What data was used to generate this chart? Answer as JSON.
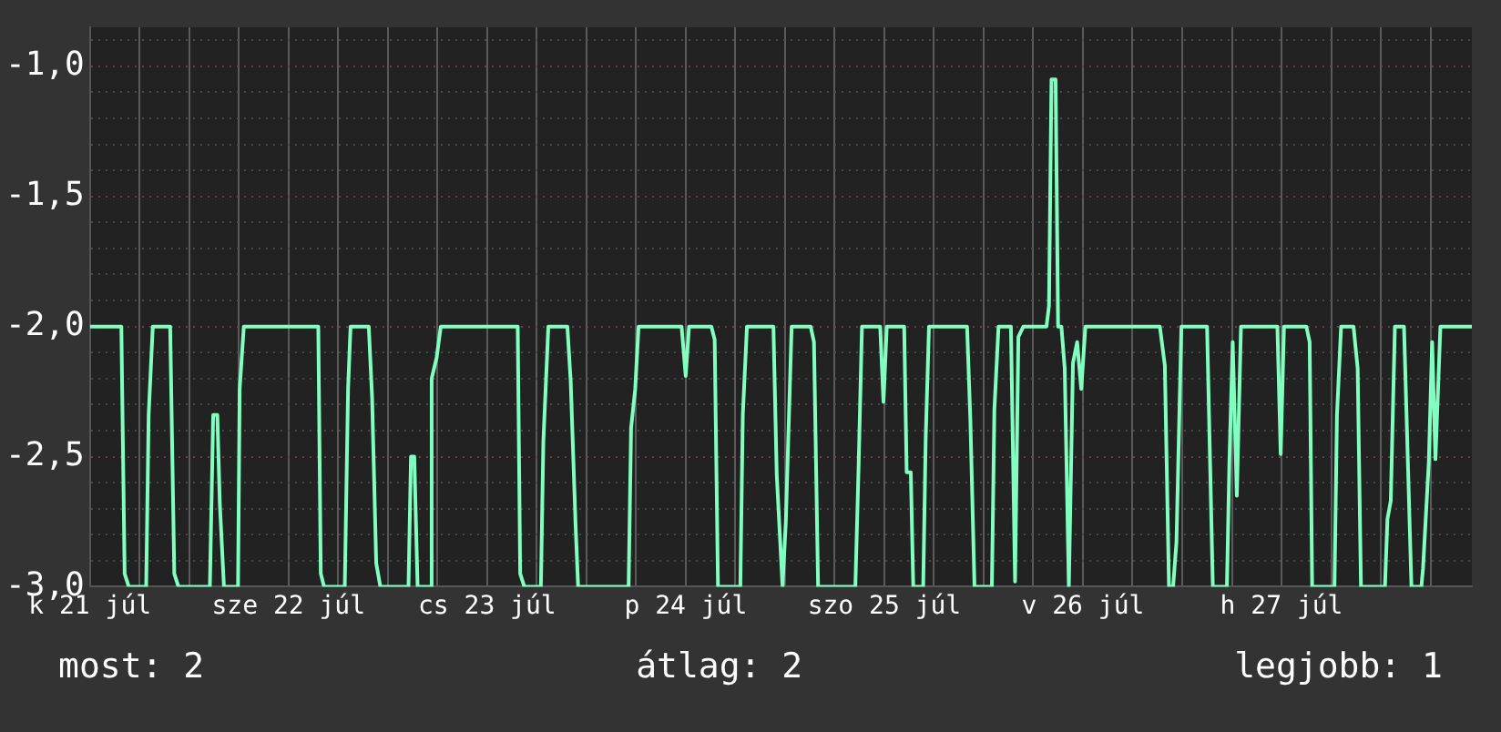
{
  "chart_data": {
    "type": "line",
    "color": "#80ffc0",
    "x": [
      "--07-21T12:00",
      "--07-21T15:48",
      "--07-21T16:12",
      "--07-21T16:42",
      "--07-21T18:48",
      "--07-21T19:06",
      "--07-21T19:36",
      "--07-21T21:42",
      "--07-21T22:12",
      "--07-21T22:42",
      "--07-22T02:30",
      "--07-22T02:54",
      "--07-22T03:24",
      "--07-22T03:42",
      "--07-22T04:12",
      "--07-22T05:54",
      "--07-22T06:06",
      "--07-22T06:36",
      "--07-22T15:36",
      "--07-22T15:54",
      "--07-22T16:18",
      "--07-22T18:48",
      "--07-22T19:12",
      "--07-22T19:30",
      "--07-22T21:42",
      "--07-22T22:06",
      "--07-22T22:36",
      "--07-22T23:06",
      "--07-23T02:30",
      "--07-23T02:48",
      "--07-23T03:12",
      "--07-23T03:36",
      "--07-23T05:06",
      "--07-23T05:18",
      "--07-23T05:54",
      "--07-23T06:24",
      "--07-23T15:42",
      "--07-23T16:00",
      "--07-23T16:30",
      "--07-23T18:30",
      "--07-23T18:48",
      "--07-23T19:24",
      "--07-23T21:42",
      "--07-23T22:06",
      "--07-23T22:42",
      "--07-23T23:00",
      "--07-24T05:06",
      "--07-24T05:24",
      "--07-24T05:54",
      "--07-24T06:18",
      "--07-24T11:30",
      "--07-24T12:00",
      "--07-24T12:24",
      "--07-24T15:06",
      "--07-24T15:30",
      "--07-24T15:54",
      "--07-24T18:36",
      "--07-24T18:54",
      "--07-24T19:24",
      "--07-24T22:36",
      "--07-24T23:00",
      "--07-24T23:42",
      "--07-25T00:06",
      "--07-25T00:48",
      "--07-25T03:06",
      "--07-25T03:30",
      "--07-25T04:00",
      "--07-25T08:30",
      "--07-25T08:54",
      "--07-25T09:18",
      "--07-25T11:30",
      "--07-25T11:54",
      "--07-25T12:18",
      "--07-25T14:24",
      "--07-25T14:42",
      "--07-25T15:12",
      "--07-25T15:30",
      "--07-25T16:42",
      "--07-25T17:00",
      "--07-25T17:24",
      "--07-25T22:00",
      "--07-25T22:24",
      "--07-25T22:54",
      "--07-26T01:00",
      "--07-26T01:18",
      "--07-26T01:48",
      "--07-26T03:18",
      "--07-26T03:48",
      "--07-26T04:12",
      "--07-26T04:48",
      "--07-26T07:36",
      "--07-26T07:54",
      "--07-26T08:12",
      "--07-26T08:42",
      "--07-26T09:00",
      "--07-26T09:24",
      "--07-26T09:48",
      "--07-26T10:18",
      "--07-26T10:48",
      "--07-26T11:18",
      "--07-26T11:48",
      "--07-26T12:18",
      "--07-26T21:18",
      "--07-26T21:54",
      "--07-26T22:24",
      "--07-26T22:54",
      "--07-26T23:18",
      "--07-26T23:54",
      "--07-27T03:00",
      "--07-27T03:24",
      "--07-27T03:42",
      "--07-27T05:24",
      "--07-27T05:42",
      "--07-27T06:06",
      "--07-27T06:36",
      "--07-27T07:06",
      "--07-27T11:30",
      "--07-27T11:54",
      "--07-27T12:18",
      "--07-27T15:00",
      "--07-27T15:24",
      "--07-27T15:42",
      "--07-27T18:24",
      "--07-27T18:42",
      "--07-27T19:12",
      "--07-27T20:42",
      "--07-27T21:12",
      "--07-27T21:36",
      "--07-28T00:30",
      "--07-28T00:48",
      "--07-28T01:12",
      "--07-28T01:42",
      "--07-28T02:48",
      "--07-28T03:42",
      "--07-28T04:54",
      "--07-28T05:06",
      "--07-28T05:48",
      "--07-28T06:12",
      "--07-28T06:36",
      "--07-28T07:12",
      "--07-28T11:00"
    ],
    "values": [
      -2,
      -2,
      -2.95,
      -3,
      -3,
      -2.34,
      -2,
      -2,
      -2.95,
      -3,
      -3,
      -2.34,
      -2.34,
      -2.68,
      -3,
      -3,
      -2.24,
      -2,
      -2,
      -2.95,
      -3,
      -3,
      -2.24,
      -2,
      -2,
      -2.27,
      -2.91,
      -3,
      -3,
      -2.5,
      -2.5,
      -3,
      -3,
      -2.2,
      -2.12,
      -2,
      -2,
      -2.95,
      -3,
      -3,
      -2.44,
      -2,
      -2,
      -2.21,
      -2.77,
      -3,
      -3,
      -2.39,
      -2.24,
      -2,
      -2,
      -2.19,
      -2,
      -2,
      -2.05,
      -3,
      -3,
      -2.34,
      -2,
      -2,
      -2.57,
      -3,
      -2.75,
      -2,
      -2,
      -2.06,
      -3,
      -3,
      -2.53,
      -2,
      -2,
      -2.29,
      -2,
      -2,
      -2.56,
      -2.56,
      -3,
      -3,
      -2.43,
      -2,
      -2,
      -2.36,
      -3,
      -3,
      -2.32,
      -2,
      -2,
      -2.98,
      -2.04,
      -2,
      -2,
      -1.92,
      -1.05,
      -1.05,
      -2,
      -2,
      -2.16,
      -3,
      -2.14,
      -2.06,
      -2.24,
      -2,
      -2,
      -2.15,
      -3,
      -3,
      -2.83,
      -2,
      -2,
      -2.57,
      -3,
      -3,
      -2.52,
      -2.06,
      -2.65,
      -2,
      -2,
      -2.49,
      -2,
      -2,
      -2.06,
      -3,
      -3,
      -2.34,
      -2,
      -2,
      -2.16,
      -3,
      -3,
      -2.74,
      -2.67,
      -2,
      -2,
      -3,
      -3,
      -2.93,
      -2.52,
      -2.06,
      -2.51,
      -2,
      -2
    ],
    "xlim": [
      "--07-21T12:00",
      "--07-28T11:00"
    ],
    "xticks": [
      {
        "value": "--07-21T12:00",
        "label": "k 21 júl"
      },
      {
        "value": "--07-21T18:00",
        "label": null
      },
      {
        "value": "--07-22T00:00",
        "label": null
      },
      {
        "value": "--07-22T06:00",
        "label": null
      },
      {
        "value": "--07-22T12:00",
        "label": "sze 22 júl"
      },
      {
        "value": "--07-22T18:00",
        "label": null
      },
      {
        "value": "--07-23T00:00",
        "label": null
      },
      {
        "value": "--07-23T06:00",
        "label": null
      },
      {
        "value": "--07-23T12:00",
        "label": "cs 23 júl"
      },
      {
        "value": "--07-23T18:00",
        "label": null
      },
      {
        "value": "--07-24T00:00",
        "label": null
      },
      {
        "value": "--07-24T06:00",
        "label": null
      },
      {
        "value": "--07-24T12:00",
        "label": "p 24 júl"
      },
      {
        "value": "--07-24T18:00",
        "label": null
      },
      {
        "value": "--07-25T00:00",
        "label": null
      },
      {
        "value": "--07-25T06:00",
        "label": null
      },
      {
        "value": "--07-25T12:00",
        "label": "szo 25 júl"
      },
      {
        "value": "--07-25T18:00",
        "label": null
      },
      {
        "value": "--07-26T00:00",
        "label": null
      },
      {
        "value": "--07-26T06:00",
        "label": null
      },
      {
        "value": "--07-26T12:00",
        "label": "v 26 júl"
      },
      {
        "value": "--07-26T18:00",
        "label": null
      },
      {
        "value": "--07-27T00:00",
        "label": null
      },
      {
        "value": "--07-27T06:00",
        "label": null
      },
      {
        "value": "--07-27T12:00",
        "label": "h 27 júl"
      },
      {
        "value": "--07-27T18:00",
        "label": null
      },
      {
        "value": "--07-28T00:00",
        "label": null
      },
      {
        "value": "--07-28T06:00",
        "label": null
      }
    ],
    "ylim": [
      -3,
      -0.85
    ],
    "yticks": [
      {
        "value": -3,
        "label": "-3,0"
      },
      {
        "value": -2.9,
        "label": null
      },
      {
        "value": -2.8,
        "label": null
      },
      {
        "value": -2.7,
        "label": null
      },
      {
        "value": -2.6,
        "label": null
      },
      {
        "value": -2.5,
        "label": "-2,5"
      },
      {
        "value": -2.4,
        "label": null
      },
      {
        "value": -2.3,
        "label": null
      },
      {
        "value": -2.2,
        "label": null
      },
      {
        "value": -2.1,
        "label": null
      },
      {
        "value": -2,
        "label": "-2,0"
      },
      {
        "value": -1.9,
        "label": null
      },
      {
        "value": -1.8,
        "label": null
      },
      {
        "value": -1.7,
        "label": null
      },
      {
        "value": -1.6,
        "label": null
      },
      {
        "value": -1.5,
        "label": "-1,5"
      },
      {
        "value": -1.4,
        "label": null
      },
      {
        "value": -1.3,
        "label": null
      },
      {
        "value": -1.2,
        "label": null
      },
      {
        "value": -1.1,
        "label": null
      },
      {
        "value": -1,
        "label": "-1,0"
      },
      {
        "value": -0.9,
        "label": null
      }
    ],
    "grid": true,
    "legend": false,
    "marker": "none",
    "line_style": "solid",
    "annotations": [
      "most: 2",
      "átlag: 2",
      "legjobb: 1"
    ]
  }
}
